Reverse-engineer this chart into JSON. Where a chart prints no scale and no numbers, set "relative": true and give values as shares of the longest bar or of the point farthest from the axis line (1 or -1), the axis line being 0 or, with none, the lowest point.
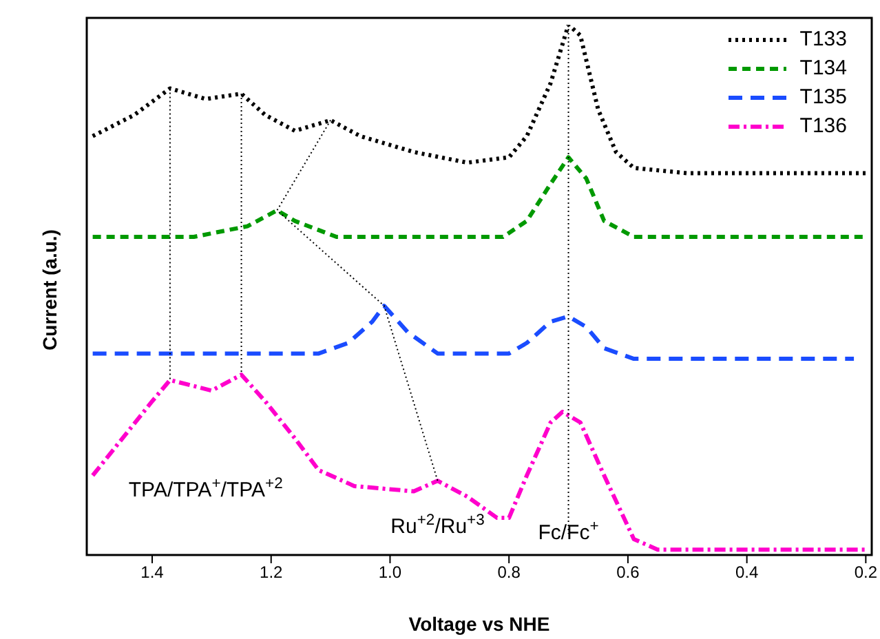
{
  "chart_data": {
    "type": "line",
    "relative": true,
    "xlabel": "Voltage vs NHE",
    "ylabel": "Current (a.u.)",
    "xlim": [
      1.51,
      0.19
    ],
    "xticks": [
      1.4,
      1.2,
      {
        "value": 1.0,
        "label": "1.0"
      },
      0.8,
      0.6,
      0.4,
      0.2
    ],
    "legend": "top right",
    "marker": "none",
    "series": [
      {
        "name": "T133",
        "color": "#000000",
        "line_style": "dotted",
        "x": [
          1.5,
          1.43,
          1.37,
          1.31,
          1.25,
          1.21,
          1.16,
          1.1,
          1.05,
          0.96,
          0.87,
          0.8,
          0.77,
          0.73,
          0.7,
          0.68,
          0.65,
          0.62,
          0.59,
          0.5,
          0.2
        ],
        "values": [
          0.79,
          0.83,
          0.88,
          0.86,
          0.87,
          0.83,
          0.8,
          0.82,
          0.79,
          0.76,
          0.74,
          0.75,
          0.79,
          0.89,
          1,
          0.98,
          0.84,
          0.76,
          0.73,
          0.72,
          0.72
        ]
      },
      {
        "name": "T134",
        "color": "#009900",
        "line_style": "dashed",
        "x": [
          1.5,
          1.33,
          1.24,
          1.19,
          1.16,
          1.09,
          0.81,
          0.77,
          0.73,
          0.7,
          0.67,
          0.64,
          0.59,
          0.2
        ],
        "values": [
          0.6,
          0.6,
          0.62,
          0.65,
          0.63,
          0.6,
          0.6,
          0.63,
          0.7,
          0.75,
          0.71,
          0.63,
          0.6,
          0.6
        ]
      },
      {
        "name": "T135",
        "color": "#1a4cff",
        "line_style": "dashed",
        "x": [
          1.5,
          1.12,
          1.07,
          1.03,
          1.01,
          0.97,
          0.92,
          0.8,
          0.77,
          0.73,
          0.7,
          0.67,
          0.64,
          0.59,
          0.22
        ],
        "values": [
          0.38,
          0.38,
          0.4,
          0.44,
          0.47,
          0.42,
          0.38,
          0.38,
          0.4,
          0.44,
          0.45,
          0.43,
          0.39,
          0.37,
          0.37
        ]
      },
      {
        "name": "T136",
        "color": "#ff00cc",
        "line_style": "dashed",
        "x": [
          1.5,
          1.45,
          1.4,
          1.37,
          1.3,
          1.25,
          1.21,
          1.16,
          1.12,
          1.06,
          0.96,
          0.92,
          0.87,
          0.82,
          0.8,
          0.77,
          0.73,
          0.71,
          0.68,
          0.64,
          0.59,
          0.55,
          0.2
        ],
        "values": [
          0.15,
          0.22,
          0.29,
          0.33,
          0.31,
          0.34,
          0.29,
          0.22,
          0.16,
          0.13,
          0.12,
          0.14,
          0.11,
          0.07,
          0.07,
          0.15,
          0.25,
          0.27,
          0.25,
          0.15,
          0.03,
          0.01,
          0.01
        ]
      },
      {
        "color": "#000000",
        "line_style": "dotted",
        "x": [
          1.37,
          1.37
        ],
        "values": [
          0.88,
          0.33
        ]
      },
      {
        "color": "#000000",
        "line_style": "dotted",
        "x": [
          1.25,
          1.25
        ],
        "values": [
          0.87,
          0.34
        ]
      },
      {
        "color": "#000000",
        "line_style": "dotted",
        "x": [
          1.1,
          1.19,
          1.01,
          0.92
        ],
        "values": [
          0.82,
          0.65,
          0.47,
          0.14
        ]
      },
      {
        "color": "#000000",
        "line_style": "dotted",
        "x": [
          0.7,
          0.7
        ],
        "values": [
          1,
          0.04
        ]
      }
    ],
    "annotations": [
      "TPA/TPA$^{+}$/TPA$^{+2}$",
      {
        "text": "Ru$^{+2}$/Ru$^{+3}$",
        "x": 0.92,
        "y": 0.14
      },
      "Fc/Fc$^{+}$"
    ]
  }
}
